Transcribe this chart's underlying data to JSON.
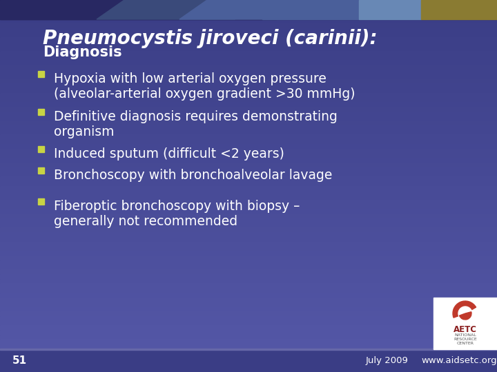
{
  "title_italic": "Pneumocystis jiroveci (carinii):",
  "title_bold": "Diagnosis",
  "bullets": [
    [
      "Hypoxia with low arterial oxygen pressure",
      "(alveolar-arterial oxygen gradient >30 mmHg)"
    ],
    [
      "Definitive diagnosis requires demonstrating",
      "organism"
    ],
    [
      "Induced sputum (difficult <2 years)"
    ],
    [
      "Bronchoscopy with bronchoalveolar lavage"
    ],
    [
      "Fiberoptic bronchoscopy with biopsy –",
      "generally not recommended"
    ]
  ],
  "bg_main": "#4b4f9e",
  "bg_top_band": "#2d2d6b",
  "bg_top_band2": "#3a3a80",
  "top_block1_color": "#4a6096",
  "top_block2_color": "#7090b8",
  "top_block3_color": "#9a8840",
  "text_color": "#ffffff",
  "bullet_color": "#c8d444",
  "footer_bg": "#4b4f9e",
  "footer_line_color": "#7878b8",
  "footer_text_color": "#ffffff",
  "slide_number": "51",
  "date_text": "July 2009",
  "url_text": "www.aidsetc.org",
  "logo_bg": "#ffffff",
  "logo_red": "#c0392b"
}
